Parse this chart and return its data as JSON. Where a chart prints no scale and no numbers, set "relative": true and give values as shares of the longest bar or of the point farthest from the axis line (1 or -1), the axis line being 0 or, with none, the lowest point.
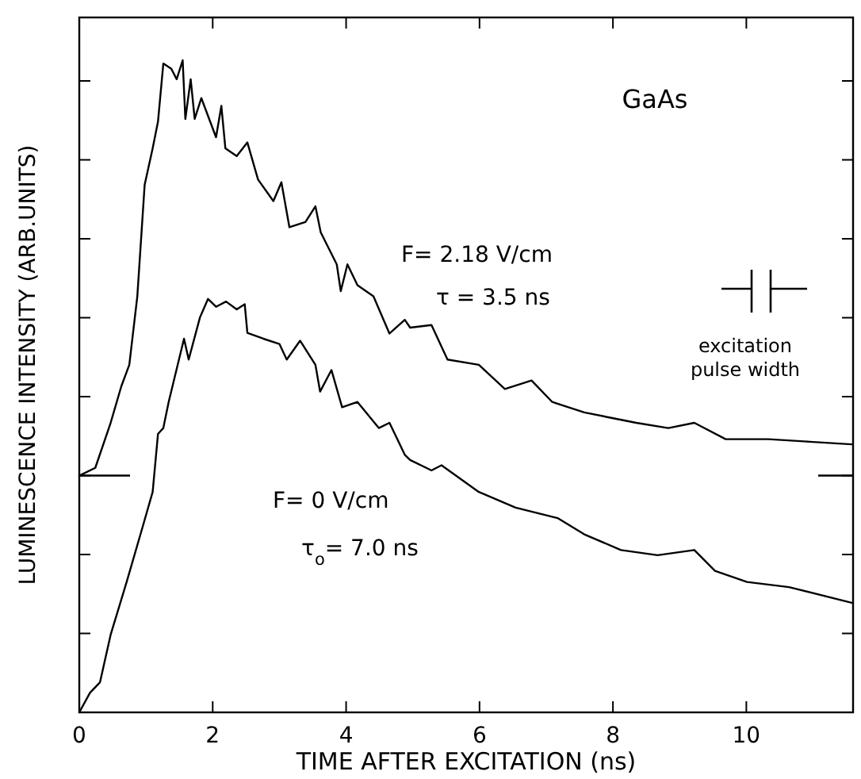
{
  "chart_data": {
    "type": "line",
    "relative": true,
    "xlabel": "TIME AFTER EXCITATION (ns)",
    "ylabel": "LUMINESCENCE INTENSITY (ARB.UNITS)",
    "xlim": [
      0,
      11.6
    ],
    "xticks": [
      0,
      2,
      4,
      6,
      8,
      10
    ],
    "grid": false,
    "line_style": "solid",
    "annotations": [
      "GaAs",
      "F= 2.18 V/cm",
      "τ = 3.5 ns",
      "F= 0 V/cm",
      "τ$_{o}$= 7.0 ns",
      "excitation pulse width"
    ],
    "series": [
      {
        "color": "#000000",
        "x": [
          0,
          0.24,
          0.47,
          0.63,
          0.75,
          0.87,
          0.98,
          1.1,
          1.18,
          1.26,
          1.38,
          1.46,
          1.55,
          1.59,
          1.67,
          1.73,
          1.83,
          2.05,
          2.13,
          2.19,
          2.36,
          2.52,
          2.68,
          2.91,
          3.03,
          3.15,
          3.39,
          3.54,
          3.62,
          3.86,
          3.92,
          4.02,
          4.17,
          4.41,
          4.65,
          4.88,
          4.96,
          5.28,
          5.52,
          5.99,
          6.38,
          6.78,
          7.09,
          7.57,
          7.96,
          8.35,
          8.83,
          9.22,
          9.69,
          10.33,
          10.95,
          11.58
        ],
        "values": [
          0.363,
          0.375,
          0.444,
          0.5,
          0.533,
          0.638,
          0.809,
          0.865,
          0.906,
          0.995,
          0.987,
          0.971,
          1,
          0.91,
          0.971,
          0.91,
          0.942,
          0.882,
          0.93,
          0.865,
          0.853,
          0.874,
          0.817,
          0.784,
          0.813,
          0.744,
          0.752,
          0.776,
          0.736,
          0.687,
          0.646,
          0.687,
          0.655,
          0.638,
          0.581,
          0.602,
          0.59,
          0.594,
          0.541,
          0.533,
          0.496,
          0.509,
          0.476,
          0.46,
          0.452,
          0.444,
          0.436,
          0.444,
          0.419,
          0.419,
          0.415,
          0.411
        ]
      },
      {
        "color": "#000000",
        "x": [
          0,
          0.16,
          0.31,
          0.47,
          0.71,
          0.94,
          1.1,
          1.18,
          1.26,
          1.34,
          1.57,
          1.64,
          1.81,
          1.93,
          2.05,
          2.2,
          2.36,
          2.48,
          2.52,
          2.76,
          3,
          3.11,
          3.31,
          3.54,
          3.61,
          3.78,
          3.94,
          4.17,
          4.49,
          4.65,
          4.88,
          4.96,
          5.28,
          5.43,
          5.99,
          6.54,
          7.17,
          7.57,
          8.12,
          8.67,
          9.22,
          9.53,
          10.01,
          10.64,
          11.58
        ],
        "values": [
          0,
          0.03,
          0.046,
          0.119,
          0.2,
          0.281,
          0.338,
          0.427,
          0.436,
          0.476,
          0.573,
          0.541,
          0.606,
          0.634,
          0.622,
          0.63,
          0.618,
          0.626,
          0.582,
          0.573,
          0.565,
          0.541,
          0.57,
          0.533,
          0.492,
          0.525,
          0.468,
          0.476,
          0.436,
          0.444,
          0.395,
          0.387,
          0.371,
          0.379,
          0.338,
          0.314,
          0.298,
          0.273,
          0.249,
          0.241,
          0.249,
          0.217,
          0.2,
          0.192,
          0.168
        ]
      }
    ]
  }
}
